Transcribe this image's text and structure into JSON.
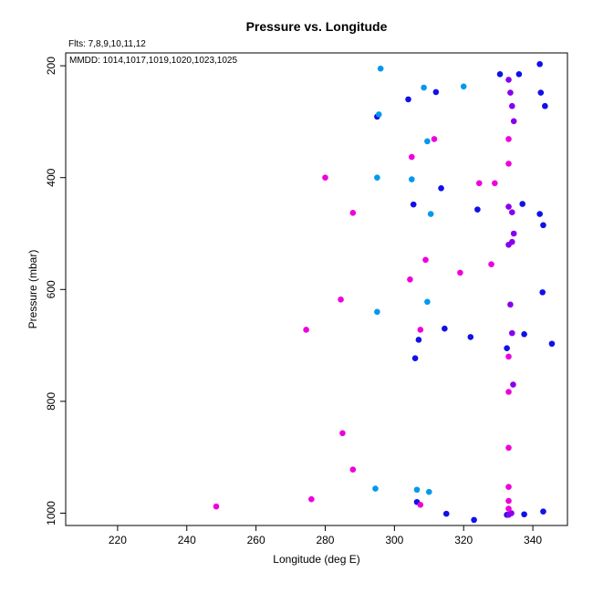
{
  "chart_data": {
    "type": "scatter",
    "title": "Pressure vs. Longitude",
    "xlabel": "Longitude (deg E)",
    "ylabel": "Pressure (mbar)",
    "annotations": [
      "Flts: 7,8,9,10,11,12",
      "MMDD: 1014,1017,1019,1020,1023,1025"
    ],
    "xlim": [
      205,
      350
    ],
    "ylim": [
      1022,
      177
    ],
    "y_inverted": true,
    "grid": false,
    "x_ticks": [
      220,
      240,
      260,
      280,
      300,
      320,
      340
    ],
    "y_ticks": [
      200,
      400,
      600,
      800,
      1000
    ],
    "series": [
      {
        "color": "#1010e8",
        "points": [
          [
            342,
            197
          ],
          [
            330.5,
            215
          ],
          [
            336,
            215
          ],
          [
            312,
            247
          ],
          [
            342.3,
            248
          ],
          [
            304,
            260
          ],
          [
            343.5,
            272
          ],
          [
            295,
            291
          ],
          [
            313.5,
            419
          ],
          [
            305.5,
            448
          ],
          [
            337,
            447
          ],
          [
            324,
            457
          ],
          [
            342,
            465
          ],
          [
            343,
            485
          ],
          [
            342.8,
            605
          ],
          [
            314.5,
            670
          ],
          [
            322,
            685
          ],
          [
            337.5,
            680
          ],
          [
            307,
            690
          ],
          [
            332.5,
            705
          ],
          [
            345.5,
            697
          ],
          [
            306,
            723
          ],
          [
            306.5,
            980
          ],
          [
            315,
            1001
          ],
          [
            332.5,
            1003
          ],
          [
            337.5,
            1002
          ],
          [
            343,
            997
          ],
          [
            323,
            1012
          ]
        ]
      },
      {
        "color": "#0099ee",
        "points": [
          [
            296,
            205
          ],
          [
            308.5,
            239
          ],
          [
            320,
            237
          ],
          [
            295.5,
            287
          ],
          [
            309.5,
            335
          ],
          [
            295,
            400
          ],
          [
            305,
            403
          ],
          [
            310.5,
            465
          ],
          [
            309.5,
            622
          ],
          [
            295,
            640
          ],
          [
            294.5,
            956
          ],
          [
            306.5,
            958
          ],
          [
            310,
            962
          ]
        ]
      },
      {
        "color": "#8800ee",
        "points": [
          [
            333,
            225
          ],
          [
            333.5,
            248
          ],
          [
            334,
            272
          ],
          [
            334.5,
            299
          ],
          [
            333,
            452
          ],
          [
            334,
            462
          ],
          [
            334.5,
            500
          ],
          [
            334,
            515
          ],
          [
            333,
            520
          ],
          [
            333.5,
            627
          ],
          [
            334,
            678
          ],
          [
            334.3,
            770
          ],
          [
            333.8,
            1000
          ],
          [
            333,
            1003
          ]
        ]
      },
      {
        "color": "#ee00dd",
        "points": [
          [
            311.5,
            331
          ],
          [
            333,
            331
          ],
          [
            305,
            363
          ],
          [
            333,
            375
          ],
          [
            280,
            400
          ],
          [
            324.5,
            410
          ],
          [
            329,
            410
          ],
          [
            288,
            463
          ],
          [
            309,
            547
          ],
          [
            328,
            555
          ],
          [
            319,
            570
          ],
          [
            304.5,
            582
          ],
          [
            284.5,
            618
          ],
          [
            274.5,
            672
          ],
          [
            307.5,
            672
          ],
          [
            333,
            720
          ],
          [
            333,
            783
          ],
          [
            285,
            857
          ],
          [
            333,
            883
          ],
          [
            288,
            922
          ],
          [
            333,
            953
          ],
          [
            276,
            975
          ],
          [
            333,
            978
          ],
          [
            248.5,
            988
          ],
          [
            307.5,
            985
          ],
          [
            333,
            992
          ]
        ]
      }
    ]
  }
}
